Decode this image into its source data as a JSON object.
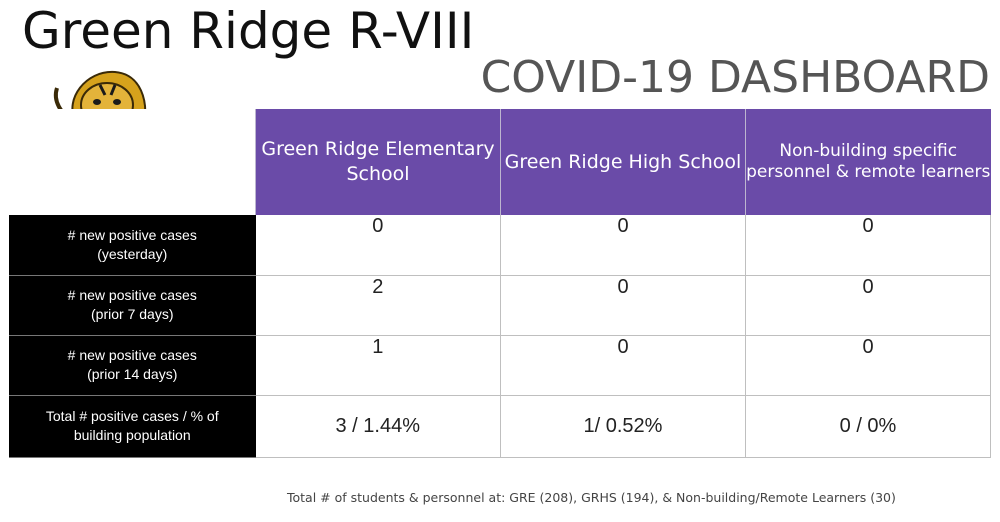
{
  "header": {
    "district_title": "Green Ridge R-VIII",
    "dashboard_title": "COVID-19 DASHBOARD",
    "mascot_icon": "tiger-mascot-icon"
  },
  "colors": {
    "header_purple": "#6a4ba8",
    "row_header_black": "#000000",
    "grid_gray": "#bfbfbf"
  },
  "table": {
    "columns": [
      "Green Ridge Elementary School",
      "Green Ridge High School",
      "Non-building specific personnel & remote learners"
    ],
    "rows": [
      {
        "label_line1": "# new positive cases",
        "label_line2": "(yesterday)",
        "values": [
          "0",
          "0",
          "0"
        ]
      },
      {
        "label_line1": "# new positive cases",
        "label_line2": "(prior 7 days)",
        "values": [
          "2",
          "0",
          "0"
        ]
      },
      {
        "label_line1": "# new positive cases",
        "label_line2": "(prior 14 days)",
        "values": [
          "1",
          "0",
          "0"
        ]
      },
      {
        "label_line1": "Total # positive cases / % of",
        "label_line2": "building population",
        "values": [
          "3 / 1.44%",
          "1/ 0.52%",
          "0 / 0%"
        ]
      }
    ]
  },
  "footnote": "Total # of students & personnel at: GRE (208), GRHS (194), & Non-building/Remote Learners (30)"
}
